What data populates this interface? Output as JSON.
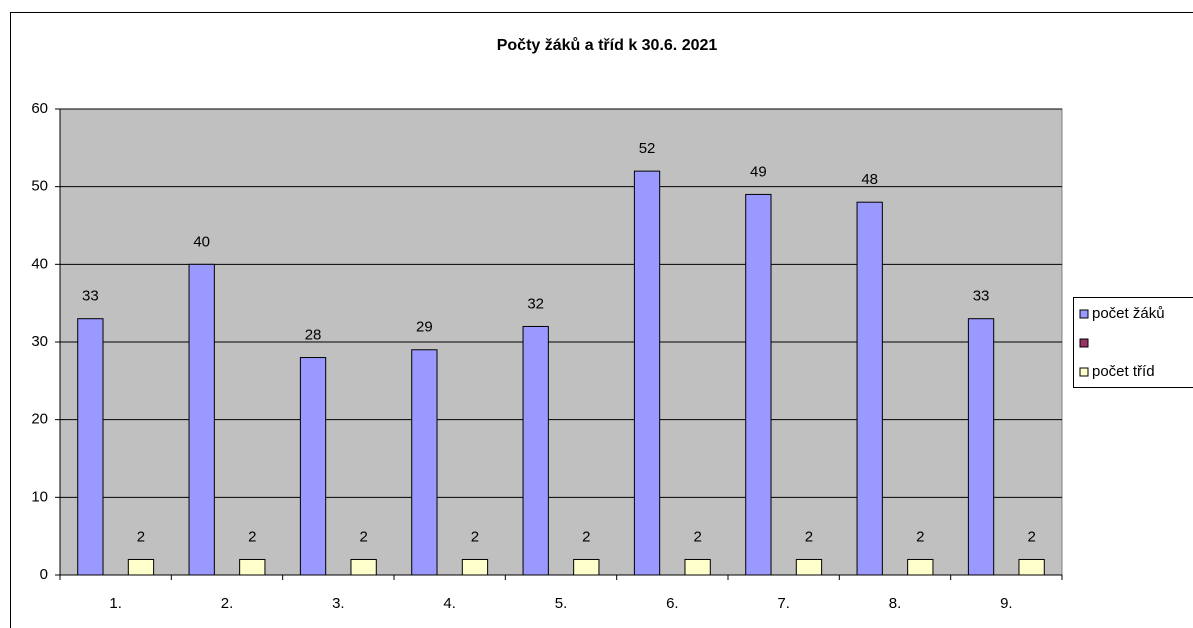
{
  "chart_data": {
    "type": "bar",
    "title": "Počty žáků a tříd  k 30.6. 2021",
    "categories": [
      "1.",
      "2.",
      "3.",
      "4.",
      "5.",
      "6.",
      "7.",
      "8.",
      "9."
    ],
    "series": [
      {
        "name": "počet žáků",
        "color": "#9999ff",
        "values": [
          33,
          40,
          28,
          29,
          32,
          52,
          49,
          48,
          33
        ]
      },
      {
        "color": "#993366",
        "values": [
          null,
          null,
          null,
          null,
          null,
          null,
          null,
          null,
          null
        ]
      },
      {
        "name": "počet tříd",
        "color": "#ffffcc",
        "values": [
          2,
          2,
          2,
          2,
          2,
          2,
          2,
          2,
          2
        ]
      }
    ],
    "ylim": [
      0,
      60
    ],
    "yticks": [
      0,
      10,
      20,
      30,
      40,
      50,
      60
    ],
    "grid": true,
    "legend": "right"
  }
}
